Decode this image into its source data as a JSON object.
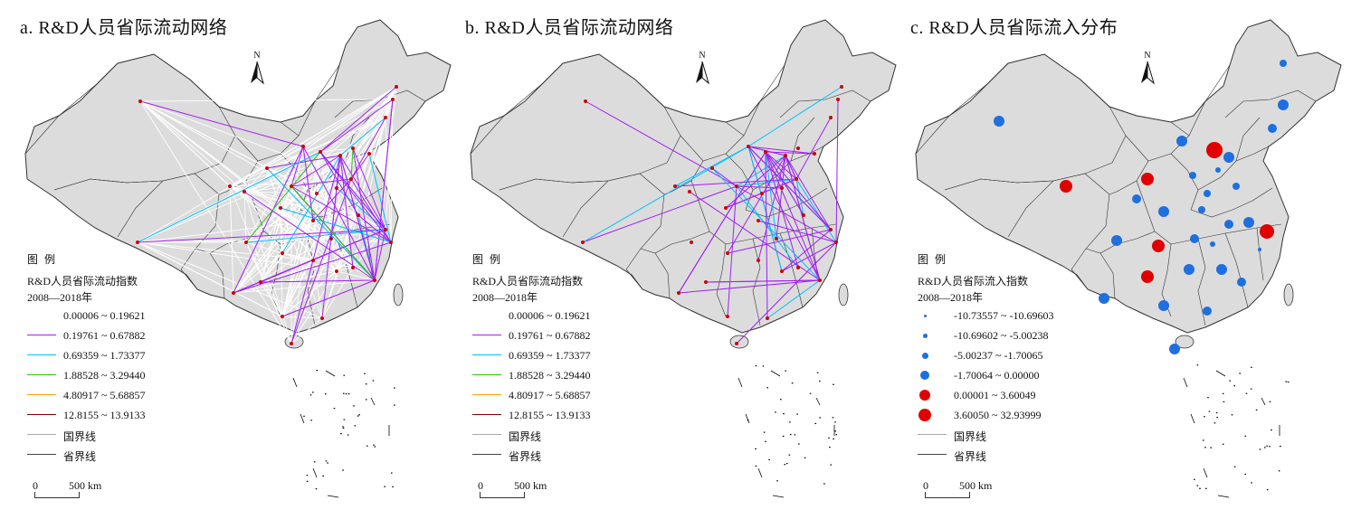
{
  "panels": [
    {
      "id": "a",
      "title": "a. R&D人员省际流动网络",
      "legend_type": "lines",
      "show_white_flows": true
    },
    {
      "id": "b",
      "title": "b. R&D人员省际流动网络",
      "legend_type": "lines",
      "show_white_flows": false
    },
    {
      "id": "c",
      "title": "c. R&D人员省际流入分布",
      "legend_type": "dots"
    }
  ],
  "north_label": "N",
  "legend": {
    "heading": "图 例",
    "flow_subtitle": "R&D人员省际流动指数",
    "inflow_subtitle": "R&D人员省际流入指数",
    "period": "2008—2018年",
    "flow_classes": [
      {
        "label": "0.00006 ~ 0.19621",
        "color": "#ffffff"
      },
      {
        "label": "0.19761 ~ 0.67882",
        "color": "#a020f0"
      },
      {
        "label": "0.69359 ~ 1.73377",
        "color": "#00bfff"
      },
      {
        "label": "1.88528 ~ 3.29440",
        "color": "#22cc00"
      },
      {
        "label": "4.80917 ~ 5.68857",
        "color": "#ffa500"
      },
      {
        "label": "12.8155 ~ 13.9133",
        "color": "#8b0000"
      }
    ],
    "inflow_classes": [
      {
        "label": "-10.73557 ~ -10.69603",
        "color": "#1e6fe0"
      },
      {
        "label": "-10.69602 ~ -5.00238",
        "color": "#1e6fe0"
      },
      {
        "label": "-5.00237 ~ -1.70065",
        "color": "#1e6fe0"
      },
      {
        "label": "-1.70064 ~ 0.00000",
        "color": "#1e6fe0"
      },
      {
        "label": "0.00001 ~ 3.60049",
        "color": "#e00000"
      },
      {
        "label": "3.60050 ~ 32.93999",
        "color": "#e00000"
      }
    ],
    "national_border": "国界线",
    "provincial_border": "省界线"
  },
  "scale": {
    "zero": "0",
    "distance": "500 km"
  },
  "colors": {
    "land": "#dcdcdc",
    "border": "#333333",
    "node": "#cc0000",
    "positive": "#e00000",
    "negative": "#1e6fe0"
  }
}
